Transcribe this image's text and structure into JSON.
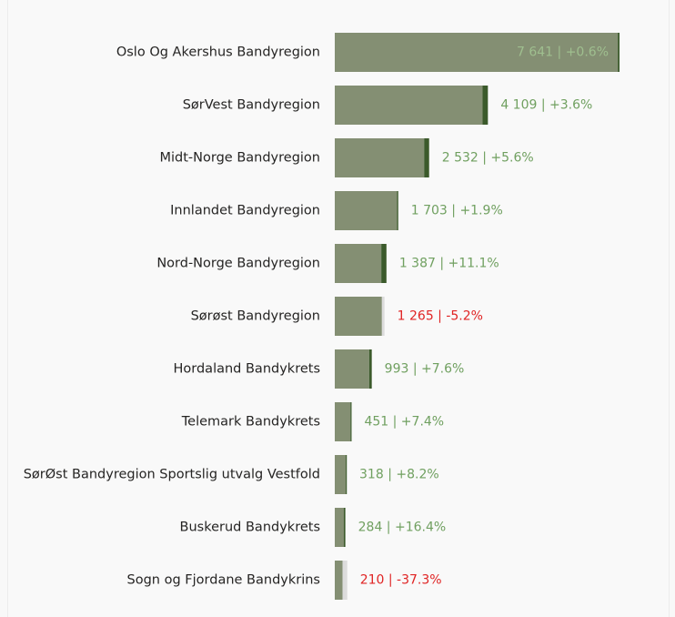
{
  "chart_data": {
    "type": "bar",
    "orientation": "horizontal",
    "categories": [
      "Oslo Og Akershus Bandyregion",
      "SørVest Bandyregion",
      "Midt-Norge Bandyregion",
      "Innlandet Bandyregion",
      "Nord-Norge Bandyregion",
      "Sørøst Bandyregion",
      "Hordaland Bandykrets",
      "Telemark Bandykrets",
      "SørØst Bandyregion Sportslig utvalg Vestfold",
      "Buskerud Bandykrets",
      "Sogn og Fjordane Bandykrins"
    ],
    "series": [
      {
        "values": [
          7641,
          4109,
          2532,
          1703,
          1387,
          1265,
          993,
          451,
          318,
          284,
          210
        ]
      }
    ],
    "change_pct": [
      0.6,
      3.6,
      5.6,
      1.9,
      11.1,
      -5.2,
      7.6,
      7.4,
      8.2,
      16.4,
      -37.3
    ],
    "data_labels": [
      "7 641 | +0.6%",
      "4 109 | +3.6%",
      "2 532 | +5.6%",
      "1 703 | +1.9%",
      "1 387 | +11.1%",
      "1 265 | -5.2%",
      "993 | +7.6%",
      "451 | +7.4%",
      "318 | +8.2%",
      "284 | +16.4%",
      "210 | -37.3%"
    ],
    "xlim": [
      0,
      7641
    ],
    "grid": false,
    "legend": "none",
    "colors": {
      "bar": "#848f73",
      "increase": "#3b5a2b",
      "decrease": "#dcdcdc",
      "label_positive": "#70a060",
      "label_negative": "#e02424",
      "label_inside": "#9fbf8f",
      "category_text": "#252423",
      "background": "#f9f9f9"
    }
  }
}
